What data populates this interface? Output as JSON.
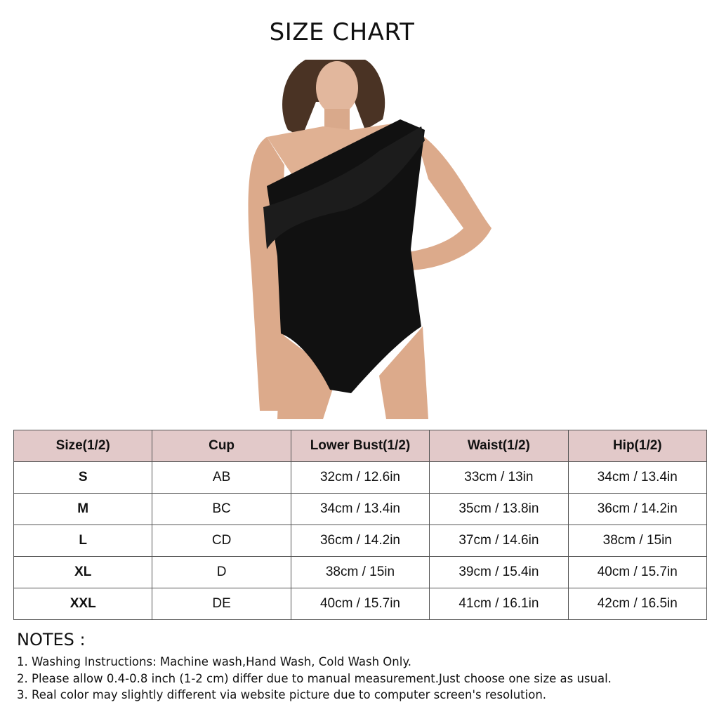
{
  "title": "SIZE CHART",
  "table": {
    "headers": [
      "Size(1/2)",
      "Cup",
      "Lower Bust(1/2)",
      "Waist(1/2)",
      "Hip(1/2)"
    ],
    "rows": [
      [
        "S",
        "AB",
        "32cm / 12.6in",
        "33cm / 13in",
        "34cm / 13.4in"
      ],
      [
        "M",
        "BC",
        "34cm / 13.4in",
        "35cm / 13.8in",
        "36cm / 14.2in"
      ],
      [
        "L",
        "CD",
        "36cm / 14.2in",
        "37cm / 14.6in",
        "38cm / 15in"
      ],
      [
        "XL",
        "D",
        "38cm / 15in",
        "39cm / 15.4in",
        "40cm / 15.7in"
      ],
      [
        "XXL",
        "DE",
        "40cm / 15.7in",
        "41cm / 16.1in",
        "42cm / 16.5in"
      ]
    ],
    "header_color": "#e2c9c9"
  },
  "notes": {
    "heading": "NOTES :",
    "items": [
      "1. Washing Instructions: Machine wash,Hand Wash, Cold Wash Only.",
      "2. Please allow 0.4-0.8 inch (1-2 cm) differ due to manual measurement.Just choose one size as usual.",
      "3. Real color may slightly different via website picture due to computer screen's resolution."
    ]
  }
}
